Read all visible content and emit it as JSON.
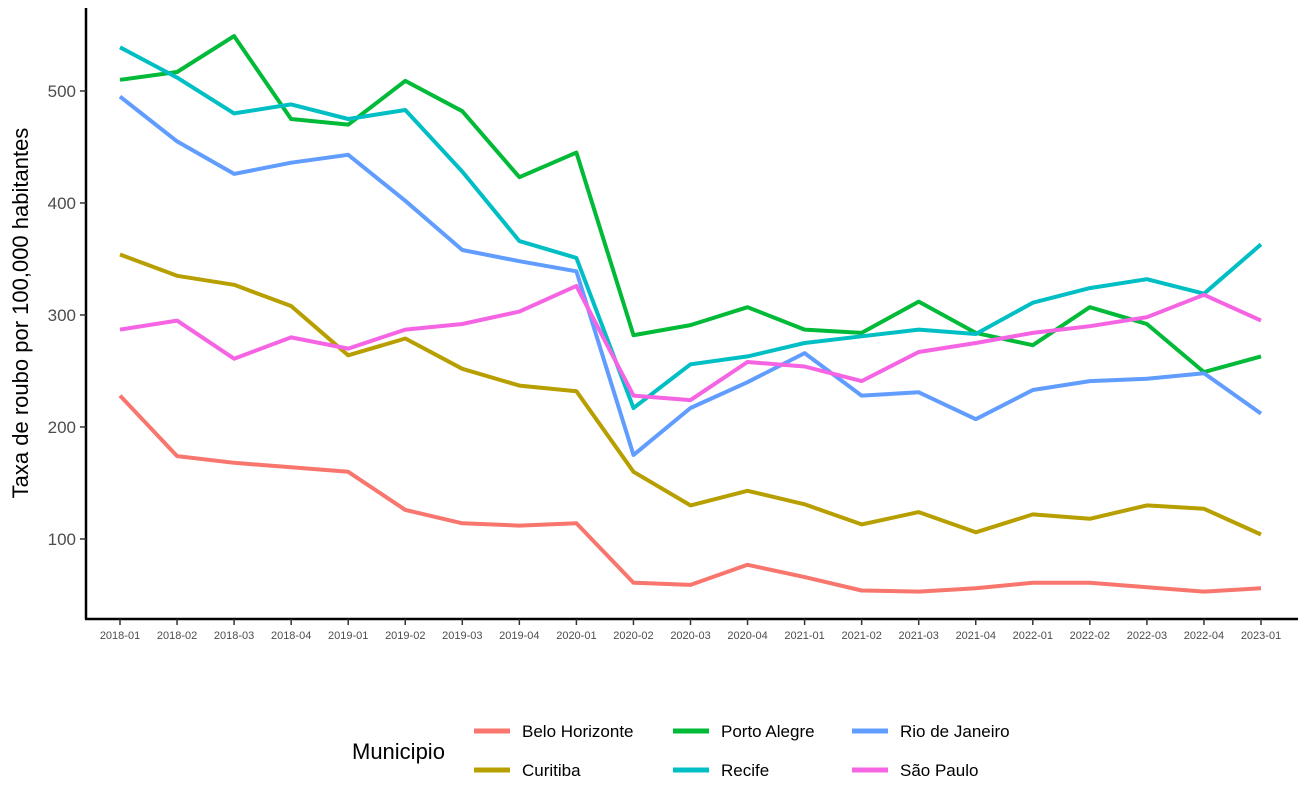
{
  "chart_data": {
    "type": "line",
    "title": "",
    "xlabel": "",
    "ylabel": "Taxa de roubo por 100,000 habitantes",
    "ylim": [
      40,
      555
    ],
    "yticks": [
      100,
      200,
      300,
      400,
      500
    ],
    "grid": false,
    "legend": {
      "title": "Municipio",
      "position": "bottom"
    },
    "categories": [
      "2018-01",
      "2018-02",
      "2018-03",
      "2018-04",
      "2019-01",
      "2019-02",
      "2019-03",
      "2019-04",
      "2020-01",
      "2020-02",
      "2020-03",
      "2020-04",
      "2021-01",
      "2021-02",
      "2021-03",
      "2021-04",
      "2022-01",
      "2022-02",
      "2022-03",
      "2022-04",
      "2023-01"
    ],
    "series": [
      {
        "name": "Belo Horizonte",
        "color": "#F8766D",
        "values": [
          228,
          174,
          168,
          164,
          160,
          126,
          114,
          112,
          114,
          61,
          59,
          77,
          66,
          54,
          53,
          56,
          61,
          61,
          57,
          53,
          56
        ]
      },
      {
        "name": "Curitiba",
        "color": "#B79F00",
        "values": [
          354,
          335,
          327,
          308,
          264,
          279,
          252,
          237,
          232,
          160,
          130,
          143,
          131,
          113,
          124,
          106,
          122,
          118,
          130,
          127,
          104
        ]
      },
      {
        "name": "Porto Alegre",
        "color": "#00BA38",
        "values": [
          510,
          517,
          549,
          475,
          470,
          509,
          482,
          423,
          445,
          282,
          291,
          307,
          287,
          284,
          312,
          284,
          273,
          307,
          292,
          249,
          263
        ]
      },
      {
        "name": "Recife",
        "color": "#00BFC4",
        "values": [
          539,
          512,
          480,
          488,
          475,
          483,
          428,
          366,
          351,
          217,
          256,
          263,
          275,
          281,
          287,
          283,
          311,
          324,
          332,
          319,
          363
        ]
      },
      {
        "name": "Rio de Janeiro",
        "color": "#619CFF",
        "values": [
          495,
          455,
          426,
          436,
          443,
          402,
          358,
          348,
          339,
          175,
          217,
          240,
          266,
          228,
          231,
          207,
          233,
          241,
          243,
          248,
          212
        ]
      },
      {
        "name": "São Paulo",
        "color": "#F564E3",
        "values": [
          287,
          295,
          261,
          280,
          270,
          287,
          292,
          303,
          326,
          228,
          224,
          258,
          254,
          241,
          267,
          275,
          284,
          290,
          298,
          318,
          295
        ]
      }
    ]
  }
}
